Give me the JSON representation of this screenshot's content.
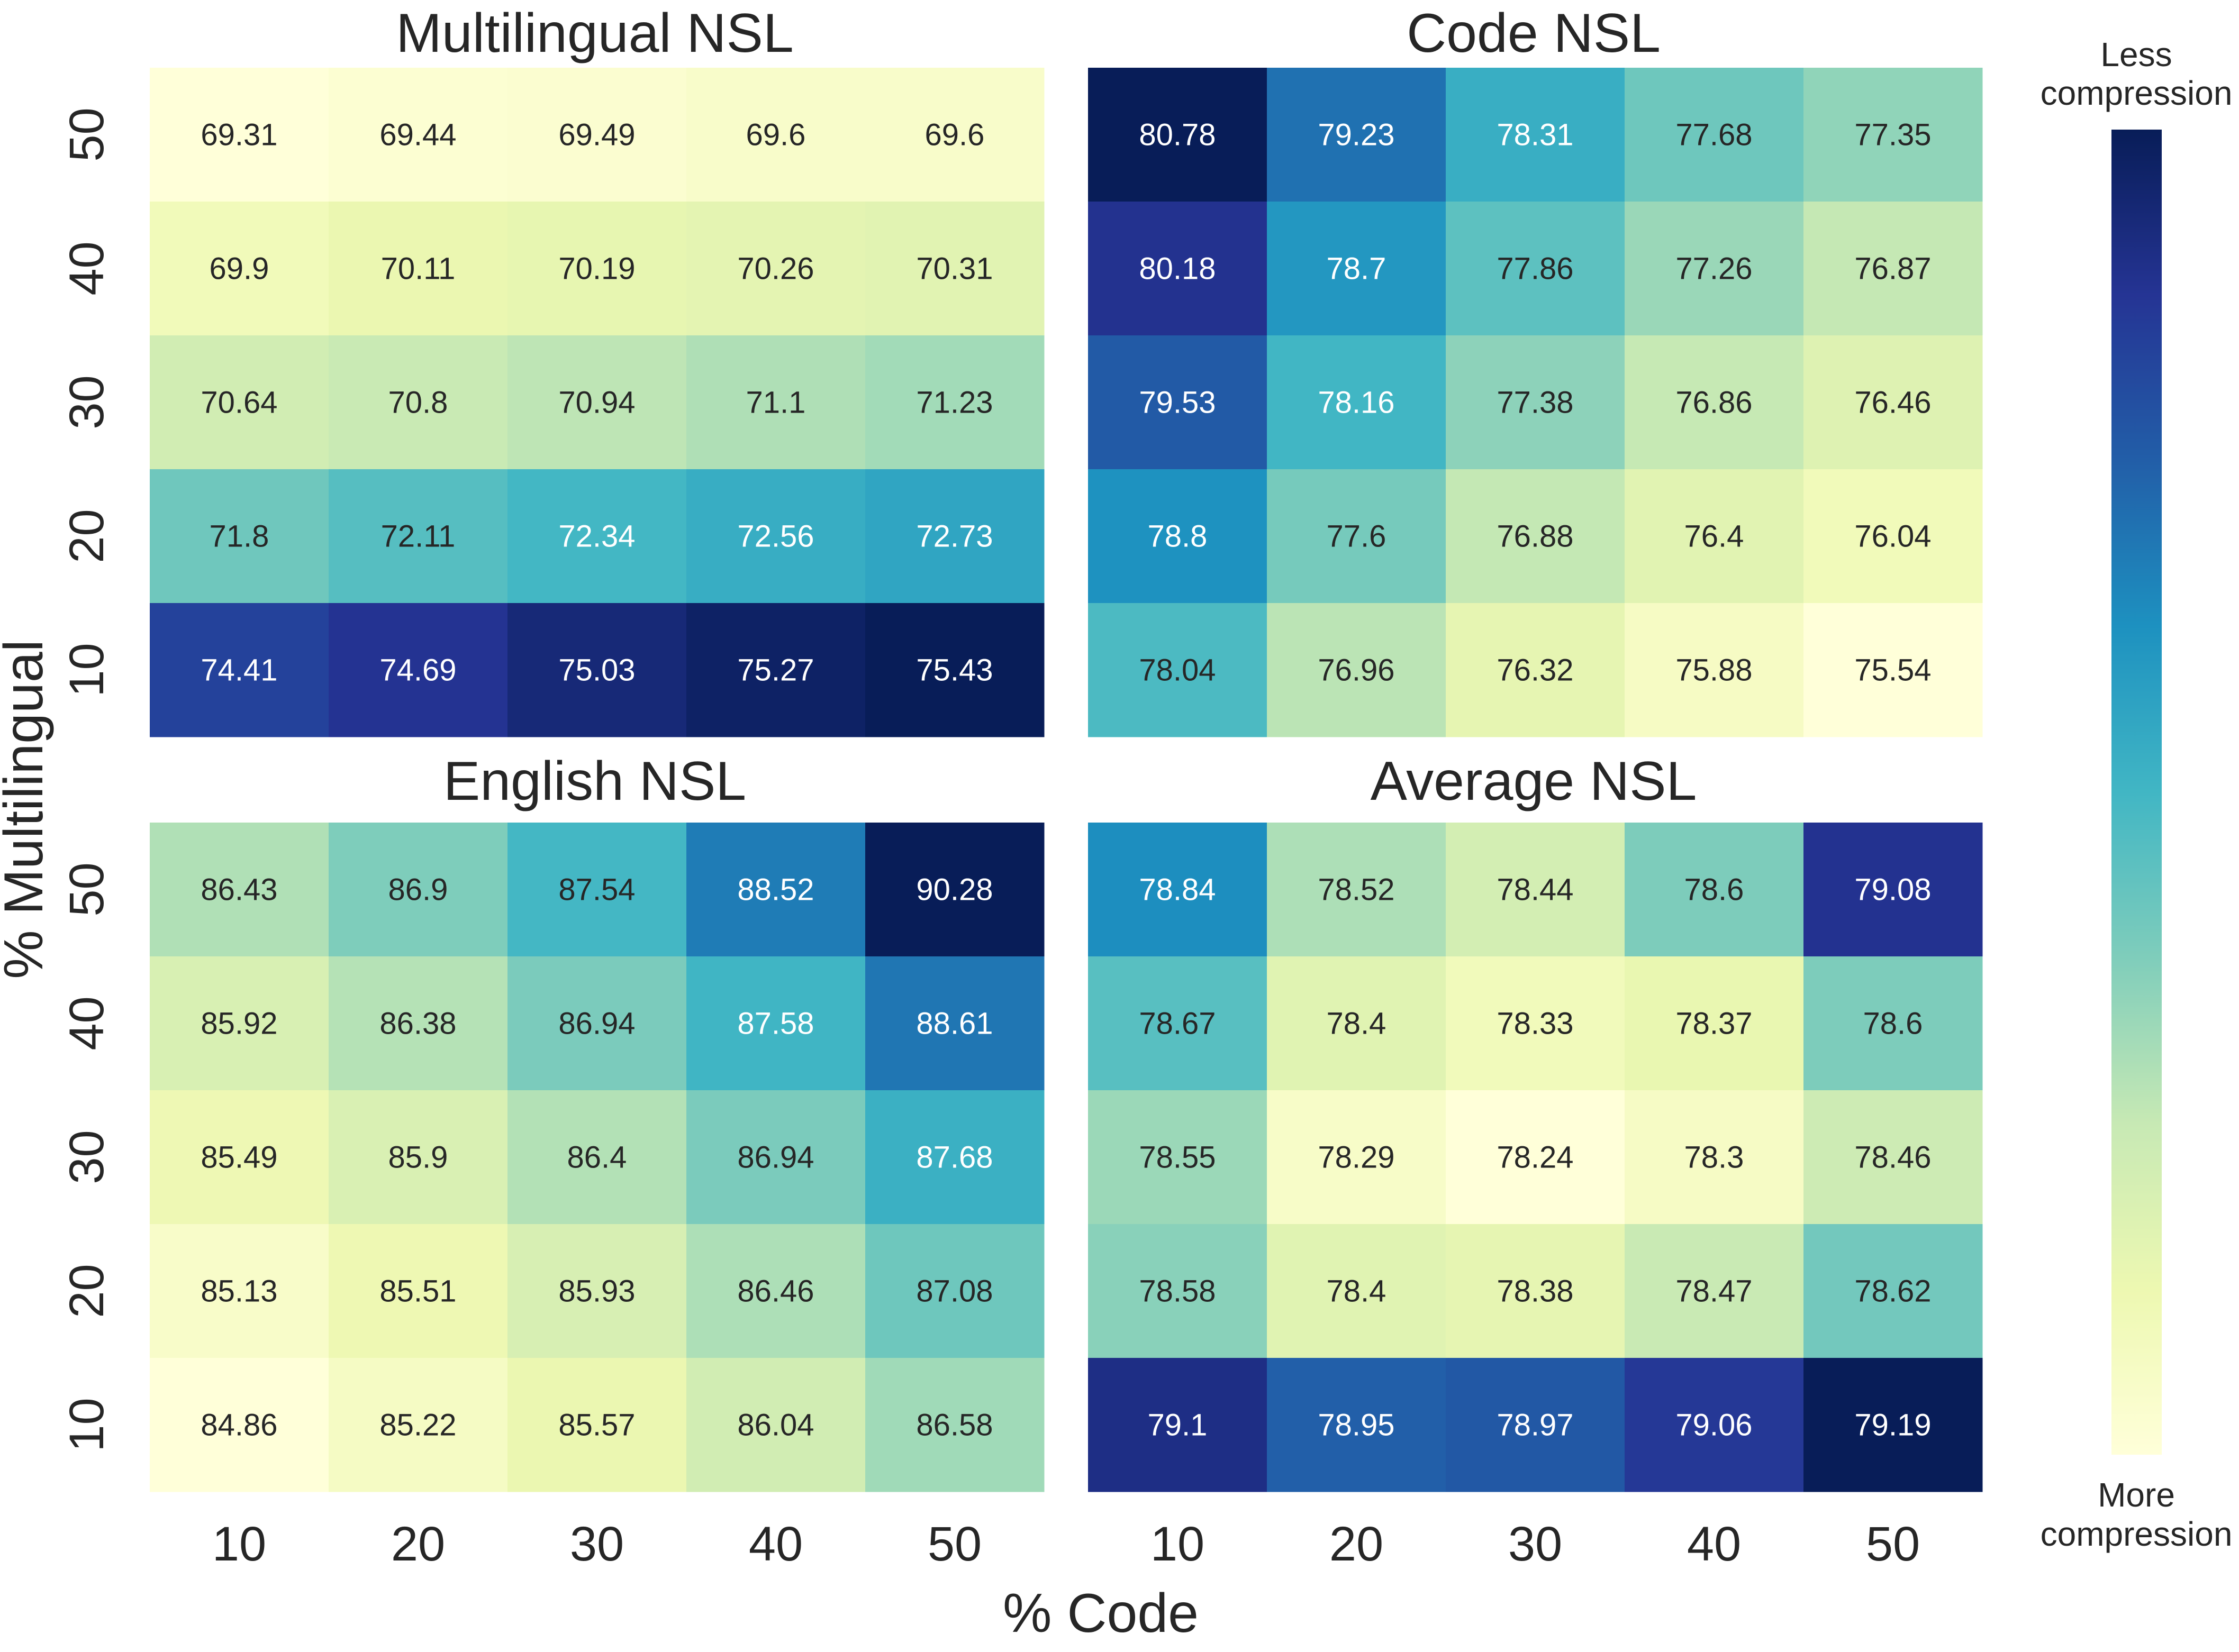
{
  "figure": {
    "xlabel": "% Code",
    "ylabel": "% Multilingual",
    "colorbar": {
      "top_label_line1": "Less",
      "top_label_line2": "compression",
      "bottom_label_line1": "More",
      "bottom_label_line2": "compression",
      "colormap": "YlGnBu"
    }
  },
  "chart_data": [
    {
      "type": "heatmap",
      "title": "Multilingual NSL",
      "x_categories": [
        "10",
        "20",
        "30",
        "40",
        "50"
      ],
      "y_categories": [
        "50",
        "40",
        "30",
        "20",
        "10"
      ],
      "values": [
        [
          69.31,
          69.44,
          69.49,
          69.6,
          69.6
        ],
        [
          69.9,
          70.11,
          70.19,
          70.26,
          70.31
        ],
        [
          70.64,
          70.8,
          70.94,
          71.1,
          71.23
        ],
        [
          71.8,
          72.11,
          72.34,
          72.56,
          72.73
        ],
        [
          74.41,
          74.69,
          75.03,
          75.27,
          75.43
        ]
      ],
      "value_labels": [
        [
          "69.31",
          "69.44",
          "69.49",
          "69.6",
          "69.6"
        ],
        [
          "69.9",
          "70.11",
          "70.19",
          "70.26",
          "70.31"
        ],
        [
          "70.64",
          "70.8",
          "70.94",
          "71.1",
          "71.23"
        ],
        [
          "71.8",
          "72.11",
          "72.34",
          "72.56",
          "72.73"
        ],
        [
          "74.41",
          "74.69",
          "75.03",
          "75.27",
          "75.43"
        ]
      ]
    },
    {
      "type": "heatmap",
      "title": "Code NSL",
      "x_categories": [
        "10",
        "20",
        "30",
        "40",
        "50"
      ],
      "y_categories": [
        "50",
        "40",
        "30",
        "20",
        "10"
      ],
      "values": [
        [
          80.78,
          79.23,
          78.31,
          77.68,
          77.35
        ],
        [
          80.18,
          78.7,
          77.86,
          77.26,
          76.87
        ],
        [
          79.53,
          78.16,
          77.38,
          76.86,
          76.46
        ],
        [
          78.8,
          77.6,
          76.88,
          76.4,
          76.04
        ],
        [
          78.04,
          76.96,
          76.32,
          75.88,
          75.54
        ]
      ],
      "value_labels": [
        [
          "80.78",
          "79.23",
          "78.31",
          "77.68",
          "77.35"
        ],
        [
          "80.18",
          "78.7",
          "77.86",
          "77.26",
          "76.87"
        ],
        [
          "79.53",
          "78.16",
          "77.38",
          "76.86",
          "76.46"
        ],
        [
          "78.8",
          "77.6",
          "76.88",
          "76.4",
          "76.04"
        ],
        [
          "78.04",
          "76.96",
          "76.32",
          "75.88",
          "75.54"
        ]
      ]
    },
    {
      "type": "heatmap",
      "title": "English NSL",
      "x_categories": [
        "10",
        "20",
        "30",
        "40",
        "50"
      ],
      "y_categories": [
        "50",
        "40",
        "30",
        "20",
        "10"
      ],
      "values": [
        [
          86.43,
          86.9,
          87.54,
          88.52,
          90.28
        ],
        [
          85.92,
          86.38,
          86.94,
          87.58,
          88.61
        ],
        [
          85.49,
          85.9,
          86.4,
          86.94,
          87.68
        ],
        [
          85.13,
          85.51,
          85.93,
          86.46,
          87.08
        ],
        [
          84.86,
          85.22,
          85.57,
          86.04,
          86.58
        ]
      ],
      "value_labels": [
        [
          "86.43",
          "86.9",
          "87.54",
          "88.52",
          "90.28"
        ],
        [
          "85.92",
          "86.38",
          "86.94",
          "87.58",
          "88.61"
        ],
        [
          "85.49",
          "85.9",
          "86.4",
          "86.94",
          "87.68"
        ],
        [
          "85.13",
          "85.51",
          "85.93",
          "86.46",
          "87.08"
        ],
        [
          "84.86",
          "85.22",
          "85.57",
          "86.04",
          "86.58"
        ]
      ]
    },
    {
      "type": "heatmap",
      "title": "Average NSL",
      "x_categories": [
        "10",
        "20",
        "30",
        "40",
        "50"
      ],
      "y_categories": [
        "50",
        "40",
        "30",
        "20",
        "10"
      ],
      "values": [
        [
          78.84,
          78.52,
          78.44,
          78.6,
          79.08
        ],
        [
          78.67,
          78.4,
          78.33,
          78.37,
          78.6
        ],
        [
          78.55,
          78.29,
          78.24,
          78.3,
          78.46
        ],
        [
          78.58,
          78.4,
          78.38,
          78.47,
          78.62
        ],
        [
          79.1,
          78.95,
          78.97,
          79.06,
          79.19
        ]
      ],
      "value_labels": [
        [
          "78.84",
          "78.52",
          "78.44",
          "78.6",
          "79.08"
        ],
        [
          "78.67",
          "78.4",
          "78.33",
          "78.37",
          "78.6"
        ],
        [
          "78.55",
          "78.29",
          "78.24",
          "78.3",
          "78.46"
        ],
        [
          "78.58",
          "78.4",
          "78.38",
          "78.47",
          "78.62"
        ],
        [
          "79.1",
          "78.95",
          "78.97",
          "79.06",
          "79.19"
        ]
      ]
    }
  ]
}
